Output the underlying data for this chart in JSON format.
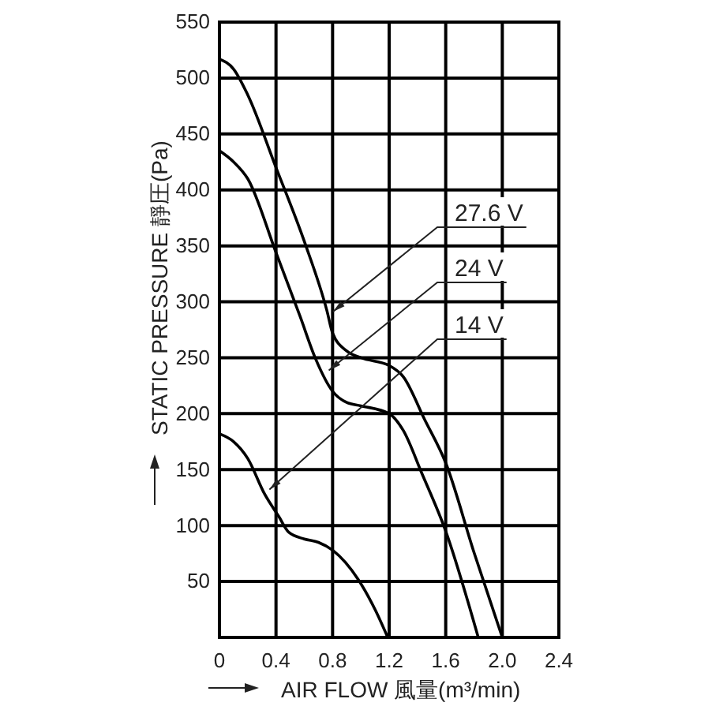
{
  "chart_data": {
    "type": "line",
    "xlabel": "AIR FLOW 風量(m³/min)",
    "ylabel": "STATIC PRESSURE 靜圧(Pa)",
    "xlim": [
      0,
      2.4
    ],
    "xticks": [
      0,
      0.4,
      0.8,
      1.2,
      1.6,
      {
        "value": 2,
        "label": "2.0"
      },
      2.4
    ],
    "ylim": [
      0,
      550
    ],
    "yticks": [
      50,
      100,
      150,
      200,
      250,
      300,
      350,
      400,
      450,
      500,
      550
    ],
    "grid": true,
    "marker": "none",
    "line_style": "solid",
    "series": [
      {
        "name": "27.6 V",
        "color": "#000000",
        "x": [
          0,
          0.1,
          0.2,
          0.4,
          0.6,
          0.76,
          0.8,
          0.9,
          1.0,
          1.2,
          1.3,
          1.45,
          1.6,
          1.8,
          2.0
        ],
        "values": [
          517,
          508,
          485,
          420,
          354,
          292,
          272,
          256,
          250,
          243,
          233,
          195,
          156,
          76,
          0
        ]
      },
      {
        "name": "24 V",
        "color": "#000000",
        "x": [
          0,
          0.1,
          0.2,
          0.4,
          0.57,
          0.68,
          0.8,
          0.9,
          1.0,
          1.2,
          1.3,
          1.43,
          1.6,
          1.83
        ],
        "values": [
          435,
          425,
          410,
          344,
          287,
          249,
          220,
          210,
          207,
          200,
          185,
          147,
          95,
          0
        ]
      },
      {
        "name": "14 V",
        "color": "#000000",
        "x": [
          0,
          0.1,
          0.2,
          0.32,
          0.42,
          0.49,
          0.6,
          0.7,
          0.8,
          0.98,
          1.1,
          1.19
        ],
        "values": [
          182,
          175,
          160,
          128,
          108,
          94,
          88,
          85,
          78,
          52,
          25,
          0
        ]
      }
    ]
  }
}
